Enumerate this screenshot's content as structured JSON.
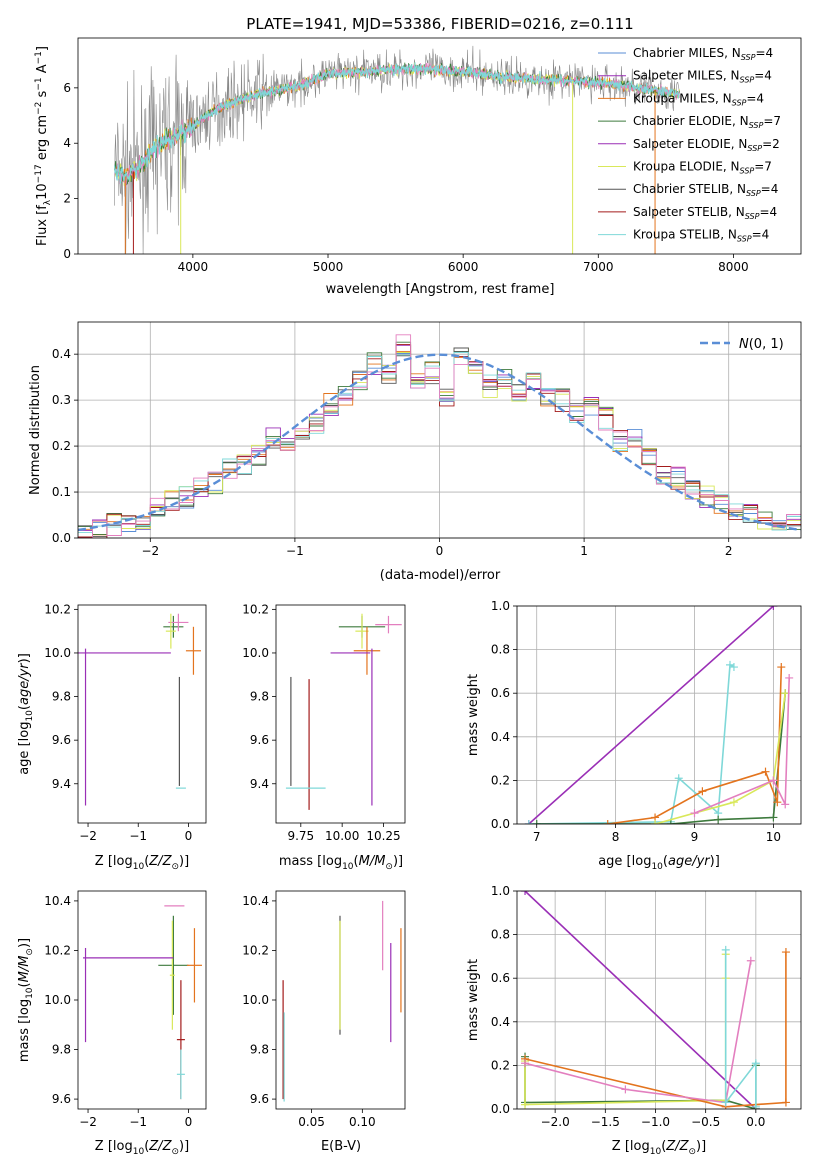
{
  "figure_title": "PLATE=1941, MJD=53386, FIBERID=0216, z=0.111",
  "colors": {
    "chabrier_miles": "#5a8ed6",
    "salpeter_miles": "#9a2fb6",
    "kroupa_miles": "#e3741e",
    "chabrier_elodie": "#3d7a3d",
    "salpeter_elodie": "#9a2fb6",
    "kroupa_elodie": "#d9e85a",
    "chabrier_stelib": "#555555",
    "salpeter_stelib": "#a31b1b",
    "kroupa_stelib": "#7fd8d8",
    "pink": "#e37fbf",
    "normal_curve": "#5a8ed6"
  },
  "chart_data": [
    {
      "type": "line",
      "panel": "spectrum",
      "title": "PLATE=1941, MJD=53386, FIBERID=0216, z=0.111",
      "xlabel": "wavelength [Angstrom, rest frame]",
      "ylabel": "Flux [f_λ 10^-17 erg cm^-2 s^-1 A^-1]",
      "xlim": [
        3150,
        8500
      ],
      "ylim": [
        0,
        7.8
      ],
      "xticks": [
        4000,
        5000,
        6000,
        7000,
        8000
      ],
      "yticks": [
        0,
        2,
        4,
        6
      ],
      "grid": false,
      "legend_position": "top-right",
      "continuum": {
        "x": [
          3420,
          3500,
          3600,
          3700,
          3800,
          3900,
          4000,
          4100,
          4200,
          4300,
          4500,
          4800,
          5000,
          5300,
          5600,
          6000,
          6300,
          6600,
          7000,
          7300,
          7600
        ],
        "y": [
          3.0,
          2.8,
          3.1,
          3.7,
          4.1,
          4.3,
          4.6,
          5.0,
          5.3,
          5.5,
          5.8,
          6.1,
          6.5,
          6.6,
          6.7,
          6.6,
          6.4,
          6.3,
          6.2,
          6.0,
          5.8
        ]
      },
      "series": [
        {
          "name": "Chabrier MILES, N_SSP=4",
          "color_key": "chabrier_miles"
        },
        {
          "name": "Salpeter MILES, N_SSP=4",
          "color_key": "salpeter_miles"
        },
        {
          "name": "Kroupa MILES, N_SSP=4",
          "color_key": "kroupa_miles"
        },
        {
          "name": "Chabrier ELODIE, N_SSP=7",
          "color_key": "chabrier_elodie"
        },
        {
          "name": "Salpeter ELODIE, N_SSP=2",
          "color_key": "salpeter_elodie"
        },
        {
          "name": "Kroupa ELODIE, N_SSP=7",
          "color_key": "kroupa_elodie"
        },
        {
          "name": "Chabrier STELIB, N_SSP=4",
          "color_key": "chabrier_stelib"
        },
        {
          "name": "Salpeter STELIB, N_SSP=4",
          "color_key": "salpeter_stelib"
        },
        {
          "name": "Kroupa STELIB, N_SSP=4",
          "color_key": "kroupa_stelib"
        }
      ],
      "legend": [
        {
          "prefix": "Chabrier MILES, N",
          "sub": "SSP",
          "suffix": "=4",
          "color_key": "chabrier_miles"
        },
        {
          "prefix": "Salpeter MILES, N",
          "sub": "SSP",
          "suffix": "=4",
          "color_key": "salpeter_miles"
        },
        {
          "prefix": "Kroupa MILES, N",
          "sub": "SSP",
          "suffix": "=4",
          "color_key": "kroupa_miles"
        },
        {
          "prefix": "Chabrier ELODIE, N",
          "sub": "SSP",
          "suffix": "=7",
          "color_key": "chabrier_elodie"
        },
        {
          "prefix": "Salpeter ELODIE, N",
          "sub": "SSP",
          "suffix": "=2",
          "color_key": "salpeter_elodie"
        },
        {
          "prefix": "Kroupa ELODIE, N",
          "sub": "SSP",
          "suffix": "=7",
          "color_key": "kroupa_elodie"
        },
        {
          "prefix": "Chabrier STELIB, N",
          "sub": "SSP",
          "suffix": "=4",
          "color_key": "chabrier_stelib"
        },
        {
          "prefix": "Salpeter STELIB, N",
          "sub": "SSP",
          "suffix": "=4",
          "color_key": "salpeter_stelib"
        },
        {
          "prefix": "Kroupa STELIB, N",
          "sub": "SSP",
          "suffix": "=4",
          "color_key": "kroupa_stelib"
        }
      ]
    },
    {
      "type": "step",
      "panel": "residual_histogram",
      "xlabel": "(data-model)/error",
      "ylabel": "Normed distribution",
      "xlim": [
        -2.5,
        2.5
      ],
      "ylim": [
        0,
        0.47
      ],
      "xticks": [
        -2,
        -1,
        0,
        1,
        2
      ],
      "yticks": [
        0.0,
        0.1,
        0.2,
        0.3,
        0.4
      ],
      "grid": true,
      "legend_position": "top-right",
      "legend": [
        {
          "label": "N(0,1)",
          "style": "dashed",
          "color_key": "normal_curve"
        }
      ],
      "bin_edges": [
        -2.5,
        -2.4,
        -2.3,
        -2.2,
        -2.1,
        -2.0,
        -1.9,
        -1.8,
        -1.7,
        -1.6,
        -1.5,
        -1.4,
        -1.3,
        -1.2,
        -1.1,
        -1.0,
        -0.9,
        -0.8,
        -0.7,
        -0.6,
        -0.5,
        -0.4,
        -0.3,
        -0.2,
        -0.1,
        0.0,
        0.1,
        0.2,
        0.3,
        0.4,
        0.5,
        0.6,
        0.7,
        0.8,
        0.9,
        1.0,
        1.1,
        1.2,
        1.3,
        1.4,
        1.5,
        1.6,
        1.7,
        1.8,
        1.9,
        2.0,
        2.1,
        2.2,
        2.3,
        2.4,
        2.5
      ],
      "base_density": [
        0.01,
        0.02,
        0.03,
        0.03,
        0.04,
        0.07,
        0.08,
        0.09,
        0.11,
        0.12,
        0.15,
        0.16,
        0.18,
        0.22,
        0.2,
        0.24,
        0.25,
        0.29,
        0.31,
        0.34,
        0.38,
        0.36,
        0.42,
        0.34,
        0.36,
        0.31,
        0.4,
        0.38,
        0.33,
        0.35,
        0.32,
        0.34,
        0.31,
        0.3,
        0.27,
        0.29,
        0.26,
        0.21,
        0.22,
        0.17,
        0.14,
        0.13,
        0.11,
        0.09,
        0.07,
        0.06,
        0.05,
        0.04,
        0.04,
        0.03
      ],
      "series_color_keys": [
        "chabrier_miles",
        "salpeter_miles",
        "kroupa_miles",
        "chabrier_elodie",
        "kroupa_elodie",
        "chabrier_stelib",
        "salpeter_stelib",
        "kroupa_stelib",
        "pink"
      ]
    },
    {
      "type": "errorbar",
      "panel": "age_vs_Z",
      "xlabel": "Z [log10(Z/Z☉)]",
      "ylabel": "age  [log10(age/yr)]",
      "xlim": [
        -2.2,
        0.35
      ],
      "ylim": [
        9.22,
        10.22
      ],
      "xticks": [
        -2,
        -1,
        0
      ],
      "yticks": [
        9.4,
        9.6,
        9.8,
        10.0,
        10.2
      ],
      "points": [
        {
          "x": -0.3,
          "y": 10.12,
          "xerr": 0.2,
          "yerr": 0.05,
          "color_key": "chabrier_elodie"
        },
        {
          "x": -0.2,
          "y": 10.14,
          "xerr": 0.2,
          "yerr": 0.04,
          "color_key": "pink"
        },
        {
          "x": -0.35,
          "y": 10.1,
          "xerr": 0.1,
          "yerr": 0.08,
          "color_key": "kroupa_elodie"
        },
        {
          "x": 0.1,
          "y": 10.01,
          "xerr": 0.15,
          "yerr": 0.11,
          "color_key": "kroupa_miles"
        },
        {
          "x": -1.3,
          "y": 10.0,
          "xerr": 0.95,
          "yerr": 0.0,
          "color_key": "salpeter_miles"
        },
        {
          "x": -2.05,
          "y": 9.66,
          "xerr": 0.0,
          "yerr": 0.36,
          "color_key": "salpeter_elodie"
        },
        {
          "x": -0.18,
          "y": 9.64,
          "xerr": 0.0,
          "yerr": 0.25,
          "color_key": "chabrier_stelib"
        },
        {
          "x": -0.15,
          "y": 9.38,
          "xerr": 0.1,
          "yerr": 0.0,
          "color_key": "kroupa_stelib"
        }
      ]
    },
    {
      "type": "errorbar",
      "panel": "age_vs_mass",
      "xlabel": "mass [log10(M/M☉)]",
      "ylabel": "",
      "xlim": [
        9.6,
        10.38
      ],
      "ylim": [
        9.22,
        10.22
      ],
      "xticks": [
        9.75,
        10.0,
        10.25
      ],
      "xticklabels": [
        "9.75",
        "10.00",
        "10.25"
      ],
      "yticks": [
        9.4,
        9.6,
        9.8,
        10.0,
        10.2
      ],
      "points": [
        {
          "x": 10.12,
          "y": 10.12,
          "xerr": 0.14,
          "yerr": 0.05,
          "color_key": "chabrier_elodie"
        },
        {
          "x": 10.28,
          "y": 10.13,
          "xerr": 0.08,
          "yerr": 0.04,
          "color_key": "pink"
        },
        {
          "x": 10.12,
          "y": 10.1,
          "xerr": 0.04,
          "yerr": 0.08,
          "color_key": "kroupa_elodie"
        },
        {
          "x": 10.15,
          "y": 10.01,
          "xerr": 0.08,
          "yerr": 0.11,
          "color_key": "kroupa_miles"
        },
        {
          "x": 10.05,
          "y": 10.0,
          "xerr": 0.12,
          "yerr": 0.0,
          "color_key": "salpeter_miles"
        },
        {
          "x": 10.18,
          "y": 9.66,
          "xerr": 0.0,
          "yerr": 0.36,
          "color_key": "salpeter_elodie"
        },
        {
          "x": 9.69,
          "y": 9.64,
          "xerr": 0.0,
          "yerr": 0.25,
          "color_key": "chabrier_stelib"
        },
        {
          "x": 9.8,
          "y": 9.58,
          "xerr": 0.0,
          "yerr": 0.3,
          "color_key": "salpeter_stelib"
        },
        {
          "x": 9.78,
          "y": 9.38,
          "xerr": 0.12,
          "yerr": 0.0,
          "color_key": "kroupa_stelib"
        }
      ]
    },
    {
      "type": "line",
      "panel": "mass_weight_vs_age",
      "xlabel": "age  [log10(age/yr)]",
      "ylabel": "mass weight",
      "xlim": [
        6.75,
        10.35
      ],
      "ylim": [
        0,
        1.0
      ],
      "xticks": [
        7,
        8,
        9,
        10
      ],
      "yticks": [
        0.0,
        0.2,
        0.4,
        0.6,
        0.8,
        1.0
      ],
      "grid": true,
      "series": [
        {
          "color_key": "salpeter_elodie",
          "x": [
            6.9,
            10.0
          ],
          "y": [
            0.0,
            1.0
          ]
        },
        {
          "color_key": "kroupa_stelib",
          "x": [
            6.9,
            8.7,
            8.8,
            9.3,
            9.45,
            9.5
          ],
          "y": [
            0.0,
            0.01,
            0.21,
            0.05,
            0.73,
            0.72
          ]
        },
        {
          "color_key": "chabrier_elodie",
          "x": [
            7.0,
            8.7,
            9.3,
            10.0,
            10.15
          ],
          "y": [
            0.0,
            0.0,
            0.02,
            0.03,
            0.6
          ]
        },
        {
          "color_key": "kroupa_miles",
          "x": [
            7.9,
            8.5,
            9.1,
            9.9,
            10.05,
            10.1
          ],
          "y": [
            0.0,
            0.03,
            0.15,
            0.24,
            0.1,
            0.72
          ]
        },
        {
          "color_key": "kroupa_elodie",
          "x": [
            8.5,
            9.5,
            10.0,
            10.15
          ],
          "y": [
            0.0,
            0.1,
            0.2,
            0.6
          ]
        },
        {
          "color_key": "pink",
          "x": [
            9.0,
            10.0,
            10.15,
            10.2
          ],
          "y": [
            0.05,
            0.2,
            0.09,
            0.67
          ]
        }
      ]
    },
    {
      "type": "errorbar",
      "panel": "mass_vs_Z",
      "xlabel": "Z [log10(Z/Z☉)]",
      "ylabel": "mass [log10(M/M☉)]",
      "xlim": [
        -2.2,
        0.35
      ],
      "ylim": [
        9.56,
        10.44
      ],
      "xticks": [
        -2,
        -1,
        0
      ],
      "yticks": [
        9.6,
        9.8,
        10.0,
        10.2,
        10.4
      ],
      "points": [
        {
          "x": -0.28,
          "y": 10.38,
          "xerr": 0.2,
          "yerr": 0.0,
          "color_key": "pink"
        },
        {
          "x": -0.3,
          "y": 10.14,
          "xerr": 0.3,
          "yerr": 0.2,
          "color_key": "chabrier_elodie"
        },
        {
          "x": -0.32,
          "y": 10.1,
          "xerr": 0.05,
          "yerr": 0.22,
          "color_key": "kroupa_elodie"
        },
        {
          "x": -1.2,
          "y": 10.17,
          "xerr": 0.9,
          "yerr": 0.0,
          "color_key": "salpeter_miles"
        },
        {
          "x": 0.12,
          "y": 10.14,
          "xerr": 0.15,
          "yerr": 0.15,
          "color_key": "kroupa_miles"
        },
        {
          "x": -2.05,
          "y": 10.02,
          "xerr": 0.0,
          "yerr": 0.19,
          "color_key": "salpeter_elodie"
        },
        {
          "x": -0.15,
          "y": 9.84,
          "xerr": 0.08,
          "yerr": 0.24,
          "color_key": "salpeter_stelib"
        },
        {
          "x": -0.15,
          "y": 9.7,
          "xerr": 0.08,
          "yerr": 0.1,
          "color_key": "kroupa_stelib"
        }
      ]
    },
    {
      "type": "errorbar",
      "panel": "mass_vs_EBV",
      "xlabel": "E(B-V)",
      "ylabel": "",
      "xlim": [
        0.015,
        0.142
      ],
      "ylim": [
        9.56,
        10.44
      ],
      "xticks": [
        0.05,
        0.1
      ],
      "xticklabels": [
        "0.05",
        "0.10"
      ],
      "yticks": [
        9.6,
        9.8,
        10.0,
        10.2,
        10.4
      ],
      "points": [
        {
          "x": 0.078,
          "y": 10.1,
          "xerr": 0.0,
          "yerr": 0.24,
          "color_key": "chabrier_stelib"
        },
        {
          "x": 0.078,
          "y": 10.1,
          "xerr": 0.0,
          "yerr": 0.22,
          "color_key": "kroupa_elodie"
        },
        {
          "x": 0.12,
          "y": 10.26,
          "xerr": 0.0,
          "yerr": 0.14,
          "color_key": "pink"
        },
        {
          "x": 0.138,
          "y": 10.12,
          "xerr": 0.0,
          "yerr": 0.17,
          "color_key": "kroupa_miles"
        },
        {
          "x": 0.128,
          "y": 10.03,
          "xerr": 0.0,
          "yerr": 0.2,
          "color_key": "salpeter_elodie"
        },
        {
          "x": 0.022,
          "y": 9.84,
          "xerr": 0.0,
          "yerr": 0.24,
          "color_key": "salpeter_stelib"
        },
        {
          "x": 0.023,
          "y": 9.77,
          "xerr": 0.0,
          "yerr": 0.18,
          "color_key": "kroupa_stelib"
        }
      ]
    },
    {
      "type": "line",
      "panel": "mass_weight_vs_Z",
      "xlabel": "Z [log10(Z/Z☉)]",
      "ylabel": "mass weight",
      "xlim": [
        -2.38,
        0.45
      ],
      "ylim": [
        0,
        1.0
      ],
      "xticks": [
        -2.0,
        -1.5,
        -1.0,
        -0.5,
        0.0
      ],
      "xticklabels": [
        "−2.0",
        "−1.5",
        "−1.0",
        "−0.5",
        "0.0"
      ],
      "yticks": [
        0.0,
        0.2,
        0.4,
        0.6,
        0.8,
        1.0
      ],
      "grid": true,
      "series": [
        {
          "color_key": "salpeter_elodie",
          "x": [
            -2.3,
            0.0
          ],
          "y": [
            1.0,
            0.0
          ]
        },
        {
          "color_key": "chabrier_elodie",
          "x": [
            -2.3,
            -2.3,
            -0.3,
            0.0,
            0.0
          ],
          "y": [
            0.24,
            0.03,
            0.04,
            0.0,
            0.2
          ]
        },
        {
          "color_key": "kroupa_elodie",
          "x": [
            -2.3,
            -2.3,
            -0.3,
            -0.3,
            -0.3
          ],
          "y": [
            0.22,
            0.02,
            0.04,
            0.6,
            0.71
          ]
        },
        {
          "color_key": "kroupa_miles",
          "x": [
            -2.3,
            -0.3,
            0.0,
            0.3,
            0.3
          ],
          "y": [
            0.23,
            0.01,
            0.02,
            0.03,
            0.72
          ]
        },
        {
          "color_key": "pink",
          "x": [
            -2.3,
            -1.3,
            -0.3,
            -0.05
          ],
          "y": [
            0.21,
            0.09,
            0.03,
            0.68
          ]
        },
        {
          "color_key": "kroupa_stelib",
          "x": [
            -0.3,
            -0.3,
            0.0,
            0.0
          ],
          "y": [
            0.73,
            0.03,
            0.21,
            0.01
          ]
        }
      ]
    }
  ]
}
